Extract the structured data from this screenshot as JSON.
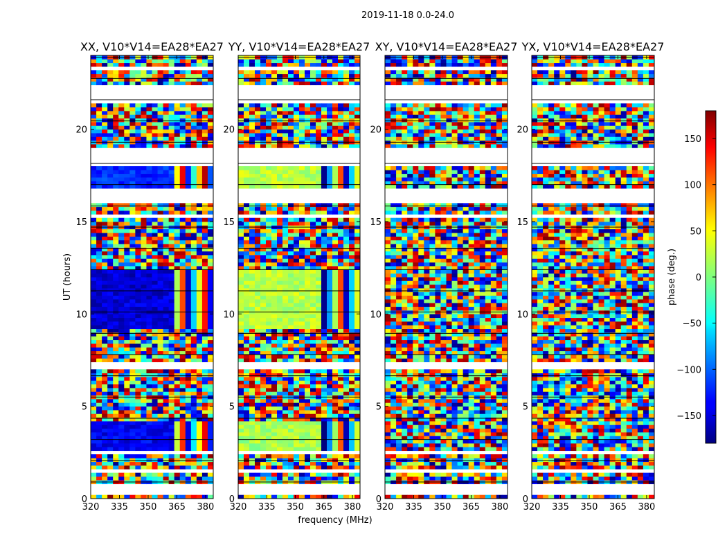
{
  "chart_data": {
    "type": "heatmap",
    "suptitle": "2019-11-18 0.0-24.0",
    "xlabel": "frequency (MHz)",
    "ylabel": "UT (hours)",
    "xlim": [
      320,
      384
    ],
    "ylim": [
      0,
      24
    ],
    "xticks": [
      320,
      335,
      350,
      365,
      380
    ],
    "yticks": [
      0,
      5,
      10,
      15,
      20
    ],
    "colorbar": {
      "label": "phase (deg.)",
      "range": [
        -180,
        180
      ],
      "ticks": [
        150,
        100,
        50,
        0,
        -50,
        -100,
        -150
      ],
      "tick_labels": [
        "150",
        "100",
        "50",
        "0",
        "−50",
        "−100",
        "−150"
      ],
      "colormap": "jet"
    },
    "panels": [
      {
        "title": "XX, V10*V14=EA28*EA27",
        "product": "XX",
        "coherent_bands": [
          [
            9.3,
            12.2,
            -150
          ],
          [
            2.5,
            4.1,
            -140
          ],
          [
            16.7,
            18.0,
            -120
          ]
        ]
      },
      {
        "title": "YY, V10*V14=EA28*EA27",
        "product": "YY",
        "coherent_bands": [
          [
            9.3,
            12.2,
            20
          ],
          [
            2.5,
            4.1,
            15
          ],
          [
            16.7,
            18.0,
            20
          ]
        ]
      },
      {
        "title": "XY, V10*V14=EA28*EA27",
        "product": "XY",
        "coherent_bands": []
      },
      {
        "title": "YX, V10*V14=EA28*EA27",
        "product": "YX",
        "coherent_bands": []
      }
    ],
    "flagged_gaps_hours": [
      [
        0.35,
        0.5
      ],
      [
        0.6,
        0.75
      ],
      [
        1.45,
        1.55
      ],
      [
        2.45,
        2.55
      ],
      [
        7.1,
        7.35
      ],
      [
        15.2,
        15.35
      ],
      [
        16.0,
        16.7
      ],
      [
        18.0,
        18.9
      ],
      [
        21.4,
        22.2
      ],
      [
        23.2,
        23.3
      ]
    ]
  }
}
